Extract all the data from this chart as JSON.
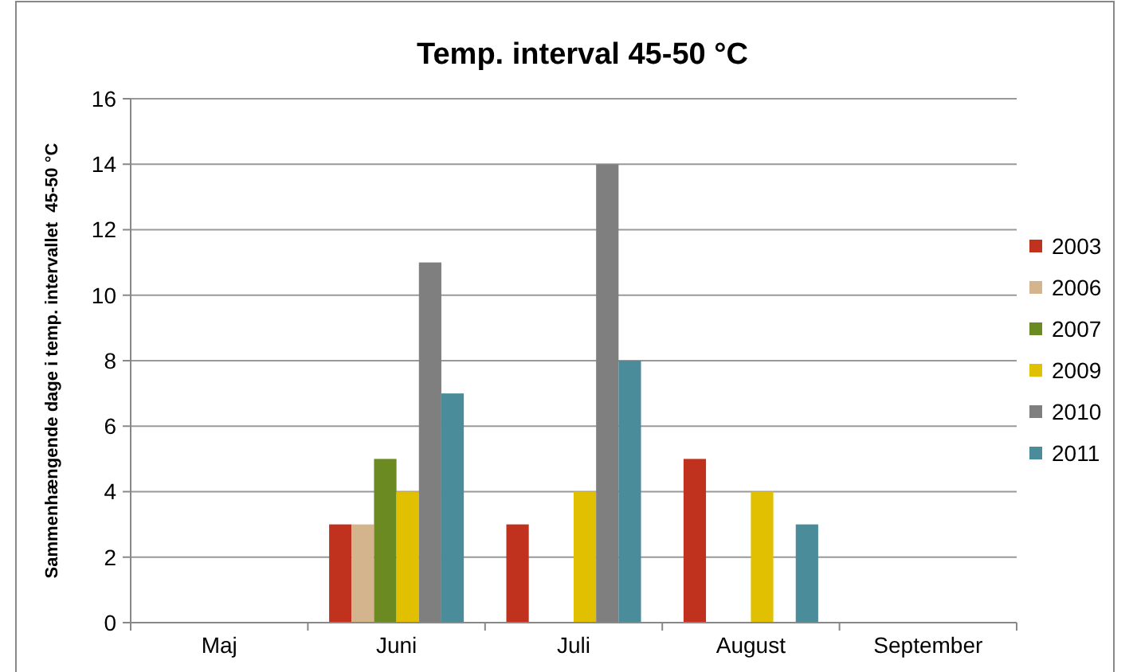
{
  "chart_data": {
    "type": "bar",
    "title": "Temp. interval 45-50 °C",
    "ylabel": "Sammenhængende dage i temp. intervallet  45-50 °C",
    "categories": [
      "Maj",
      "Juni",
      "Juli",
      "August",
      "September"
    ],
    "series": [
      {
        "name": "2003",
        "color": "#c0321e",
        "values": [
          0,
          3,
          3,
          5,
          0
        ]
      },
      {
        "name": "2006",
        "color": "#d4b48c",
        "values": [
          0,
          3,
          0,
          0,
          0
        ]
      },
      {
        "name": "2007",
        "color": "#6b8a22",
        "values": [
          0,
          5,
          0,
          0,
          0
        ]
      },
      {
        "name": "2009",
        "color": "#e0c000",
        "values": [
          0,
          4,
          4,
          4,
          0
        ]
      },
      {
        "name": "2010",
        "color": "#7f7f7f",
        "values": [
          0,
          11,
          14,
          0,
          0
        ]
      },
      {
        "name": "2011",
        "color": "#4a8c9a",
        "values": [
          0,
          7,
          8,
          3,
          0
        ]
      }
    ],
    "ylim": [
      0,
      16
    ],
    "yticks": [
      0,
      2,
      4,
      6,
      8,
      10,
      12,
      14,
      16
    ],
    "grid": "y",
    "legend": "right"
  }
}
